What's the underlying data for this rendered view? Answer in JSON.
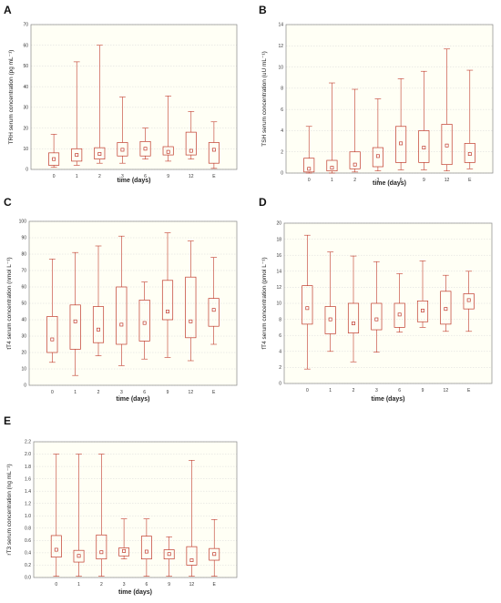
{
  "chart_data": [
    {
      "letter": "A",
      "type": "box",
      "xlabel": "time (days)",
      "ylabel": "TRH  serum concentration (pg mL⁻¹)",
      "ylim": [
        0,
        70
      ],
      "yticks": [
        0,
        10,
        20,
        30,
        40,
        50,
        60,
        70
      ],
      "categories": [
        "0",
        "1",
        "2",
        "3",
        "6",
        "9",
        "12",
        "E"
      ],
      "boxes": [
        {
          "min": 1,
          "q1": 2,
          "median": 5,
          "q3": 8,
          "max": 17
        },
        {
          "min": 2,
          "q1": 4,
          "median": 7,
          "q3": 10,
          "max": 52
        },
        {
          "min": 3,
          "q1": 5,
          "median": 7.5,
          "q3": 10.5,
          "max": 60
        },
        {
          "min": 3,
          "q1": 6.5,
          "median": 9.5,
          "q3": 13,
          "max": 35
        },
        {
          "min": 5,
          "q1": 6.5,
          "median": 10,
          "q3": 13.5,
          "max": 20
        },
        {
          "min": 4,
          "q1": 7,
          "median": 8.5,
          "q3": 11,
          "max": 35.5
        },
        {
          "min": 5,
          "q1": 7,
          "median": 9,
          "q3": 18,
          "max": 28
        },
        {
          "min": 0.5,
          "q1": 3,
          "median": 9.5,
          "q3": 13,
          "max": 23
        }
      ],
      "grid": true
    },
    {
      "letter": "B",
      "type": "box",
      "xlabel": "time (days)",
      "ylabel": "TSH serum concentration (uU mL⁻¹)",
      "ylim": [
        0,
        14
      ],
      "yticks": [
        0,
        2,
        4,
        6,
        8,
        10,
        12,
        14
      ],
      "categories": [
        "0",
        "1",
        "2",
        "3",
        "6",
        "9",
        "12",
        "E"
      ],
      "boxes": [
        {
          "min": 0,
          "q1": 0.1,
          "median": 0.4,
          "q3": 1.4,
          "max": 4.4
        },
        {
          "min": 0,
          "q1": 0.2,
          "median": 0.5,
          "q3": 1.2,
          "max": 8.5
        },
        {
          "min": 0.1,
          "q1": 0.4,
          "median": 0.8,
          "q3": 2.0,
          "max": 7.9
        },
        {
          "min": 0.2,
          "q1": 0.6,
          "median": 1.6,
          "q3": 2.4,
          "max": 7.0
        },
        {
          "min": 0.3,
          "q1": 1.0,
          "median": 2.8,
          "q3": 4.4,
          "max": 8.9
        },
        {
          "min": 0.3,
          "q1": 1.0,
          "median": 2.4,
          "q3": 4.0,
          "max": 9.6
        },
        {
          "min": 0.2,
          "q1": 0.8,
          "median": 2.6,
          "q3": 4.6,
          "max": 11.7
        },
        {
          "min": 0.4,
          "q1": 1.0,
          "median": 1.8,
          "q3": 2.8,
          "max": 9.7
        }
      ],
      "grid": true
    },
    {
      "letter": "C",
      "type": "box",
      "xlabel": "time (days)",
      "ylabel": "tT4 serum concentration (nmol L⁻¹)",
      "ylim": [
        0,
        100
      ],
      "yticks": [
        0,
        10,
        20,
        30,
        40,
        50,
        60,
        70,
        80,
        90,
        100
      ],
      "categories": [
        "0",
        "1",
        "2",
        "3",
        "6",
        "9",
        "12",
        "E"
      ],
      "boxes": [
        {
          "min": 14,
          "q1": 20,
          "median": 28,
          "q3": 42,
          "max": 77
        },
        {
          "min": 6,
          "q1": 22,
          "median": 39,
          "q3": 49,
          "max": 81
        },
        {
          "min": 18,
          "q1": 26,
          "median": 34,
          "q3": 48,
          "max": 85
        },
        {
          "min": 12,
          "q1": 25,
          "median": 37,
          "q3": 60,
          "max": 91
        },
        {
          "min": 16,
          "q1": 27,
          "median": 38,
          "q3": 52,
          "max": 63
        },
        {
          "min": 17,
          "q1": 40,
          "median": 45,
          "q3": 64,
          "max": 93
        },
        {
          "min": 15,
          "q1": 29,
          "median": 39,
          "q3": 66,
          "max": 88
        },
        {
          "min": 25,
          "q1": 36,
          "median": 46,
          "q3": 53,
          "max": 78
        }
      ],
      "grid": true
    },
    {
      "letter": "D",
      "type": "box",
      "xlabel": "time (days)",
      "ylabel": "fT4 serum concentration (pmol L⁻¹)",
      "ylim": [
        0,
        20
      ],
      "yticks": [
        0,
        2,
        4,
        6,
        8,
        10,
        12,
        14,
        16,
        18,
        20
      ],
      "categories": [
        "0",
        "1",
        "2",
        "3",
        "6",
        "9",
        "12",
        "E"
      ],
      "boxes": [
        {
          "min": 1.8,
          "q1": 7.4,
          "median": 9.4,
          "q3": 12.2,
          "max": 18.5
        },
        {
          "min": 4.0,
          "q1": 6.2,
          "median": 8.0,
          "q3": 9.6,
          "max": 16.4
        },
        {
          "min": 2.7,
          "q1": 6.3,
          "median": 7.5,
          "q3": 10.0,
          "max": 15.9
        },
        {
          "min": 3.9,
          "q1": 6.7,
          "median": 8.0,
          "q3": 10.0,
          "max": 15.2
        },
        {
          "min": 6.4,
          "q1": 7.0,
          "median": 8.6,
          "q3": 10.0,
          "max": 13.7
        },
        {
          "min": 7.0,
          "q1": 7.7,
          "median": 9.1,
          "q3": 10.3,
          "max": 15.3
        },
        {
          "min": 6.5,
          "q1": 7.4,
          "median": 9.3,
          "q3": 11.5,
          "max": 13.5
        },
        {
          "min": 6.5,
          "q1": 9.3,
          "median": 10.4,
          "q3": 11.2,
          "max": 14.0
        }
      ],
      "grid": true
    },
    {
      "letter": "E",
      "type": "box",
      "xlabel": "time (days)",
      "ylabel": "rT3  serum concentration (ng mL⁻¹)",
      "ylim": [
        0,
        2.2
      ],
      "yticks": [
        "0.0",
        "0.2",
        "0.4",
        "0.6",
        "0.8",
        "1.0",
        "1.2",
        "1.4",
        "1.6",
        "1.8",
        "2.0",
        "2.2"
      ],
      "categories": [
        "0",
        "1",
        "2",
        "3",
        "6",
        "9",
        "12",
        "E"
      ],
      "boxes": [
        {
          "min": 0.02,
          "q1": 0.33,
          "median": 0.45,
          "q3": 0.68,
          "max": 2.0
        },
        {
          "min": 0.02,
          "q1": 0.25,
          "median": 0.35,
          "q3": 0.44,
          "max": 2.0
        },
        {
          "min": 0.02,
          "q1": 0.3,
          "median": 0.41,
          "q3": 0.69,
          "max": 2.0
        },
        {
          "min": 0.3,
          "q1": 0.35,
          "median": 0.43,
          "q3": 0.48,
          "max": 0.95
        },
        {
          "min": 0.02,
          "q1": 0.3,
          "median": 0.42,
          "q3": 0.67,
          "max": 0.95
        },
        {
          "min": 0.02,
          "q1": 0.3,
          "median": 0.38,
          "q3": 0.45,
          "max": 0.66
        },
        {
          "min": 0.02,
          "q1": 0.2,
          "median": 0.28,
          "q3": 0.5,
          "max": 1.9
        },
        {
          "min": 0.02,
          "q1": 0.28,
          "median": 0.38,
          "q3": 0.47,
          "max": 0.94
        }
      ],
      "grid": true
    }
  ],
  "colors": {
    "box": "#c0392b",
    "grid": "#d8d8d8",
    "frame": "#888888",
    "bg": "#fffff5"
  }
}
